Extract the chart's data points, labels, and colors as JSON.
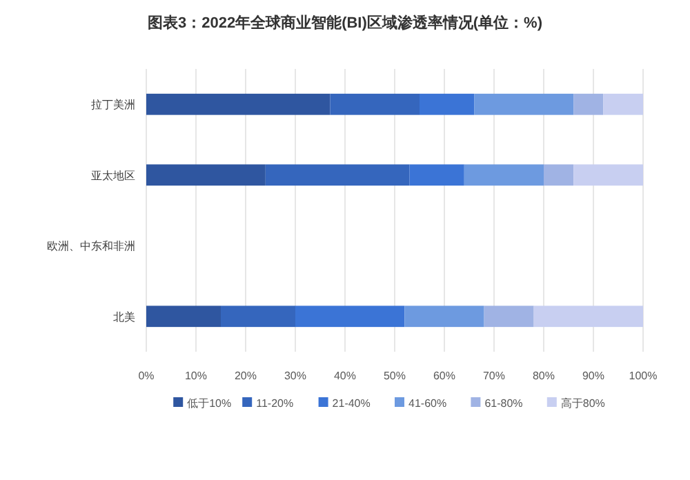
{
  "chart_data": {
    "type": "bar",
    "orientation": "horizontal",
    "stacked": true,
    "title": "图表3：2022年全球商业智能(BI)区域渗透率情况(单位：%)",
    "categories": [
      "拉丁美洲",
      "亚太地区",
      "欧洲、中东和非洲",
      "北美"
    ],
    "series": [
      {
        "name": "低于10%",
        "color": "#2f56a0",
        "values": [
          37,
          24,
          null,
          15
        ]
      },
      {
        "name": "11-20%",
        "color": "#3566bd",
        "values": [
          18,
          29,
          null,
          15
        ]
      },
      {
        "name": "21-40%",
        "color": "#3b74d6",
        "values": [
          11,
          11,
          null,
          22
        ]
      },
      {
        "name": "41-60%",
        "color": "#6d9ae0",
        "values": [
          20,
          16,
          null,
          16
        ]
      },
      {
        "name": "61-80%",
        "color": "#a0b3e4",
        "values": [
          6,
          6,
          null,
          10
        ]
      },
      {
        "name": "高于80%",
        "color": "#c8cff1",
        "values": [
          8,
          14,
          null,
          22
        ]
      }
    ],
    "xlim": [
      0,
      100
    ],
    "xticks": [
      {
        "value": 0,
        "label": "0%"
      },
      {
        "value": 10,
        "label": "10%"
      },
      {
        "value": 20,
        "label": "20%"
      },
      {
        "value": 30,
        "label": "30%"
      },
      {
        "value": 40,
        "label": "40%"
      },
      {
        "value": 50,
        "label": "50%"
      },
      {
        "value": 60,
        "label": "60%"
      },
      {
        "value": 70,
        "label": "70%"
      },
      {
        "value": 80,
        "label": "80%"
      },
      {
        "value": 90,
        "label": "90%"
      },
      {
        "value": 100,
        "label": "100%"
      }
    ],
    "grid": "x",
    "legend": "bottom"
  }
}
